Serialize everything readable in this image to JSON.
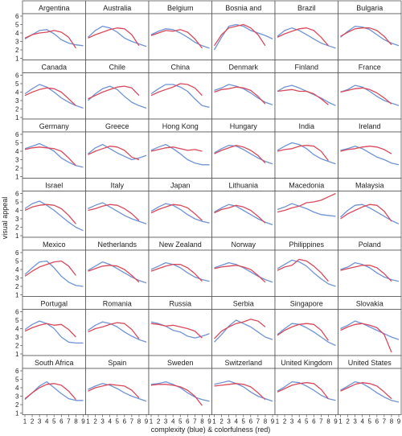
{
  "chart_data": {
    "type": "line",
    "layout": "small-multiples 6x7",
    "ylabel": "visual appeal",
    "xlabel": "complexity (blue) & colorfulness (red)",
    "x": [
      1,
      2,
      3,
      4,
      5,
      6,
      7,
      8,
      9
    ],
    "ylim": [
      1,
      6
    ],
    "yticks": [
      1,
      2,
      3,
      4,
      5,
      6
    ],
    "xlim": [
      1,
      9
    ],
    "series_colors": {
      "complexity": "#6f93d4",
      "colorfulness": "#d9495c"
    },
    "panels": [
      {
        "title": "Argentina",
        "complexity": [
          3.3,
          3.8,
          4.3,
          4.4,
          3.9,
          3.2,
          2.8,
          2.6,
          2.5
        ],
        "colorfulness": [
          3.4,
          3.8,
          4.0,
          4.1,
          4.3,
          4.1,
          3.5,
          2.2,
          null
        ]
      },
      {
        "title": "Australia",
        "complexity": [
          3.5,
          4.3,
          4.8,
          4.6,
          4.1,
          3.4,
          3.0,
          2.7,
          2.4
        ],
        "colorfulness": [
          3.4,
          3.8,
          4.1,
          4.4,
          4.6,
          4.5,
          3.8,
          2.5,
          null
        ]
      },
      {
        "title": "Belgium",
        "complexity": [
          3.8,
          4.2,
          4.5,
          4.4,
          4.0,
          3.5,
          2.9,
          2.5,
          2.2
        ],
        "colorfulness": [
          3.7,
          4.0,
          4.3,
          4.2,
          4.4,
          4.1,
          3.3,
          2.2,
          null
        ]
      },
      {
        "title": "Bosnia and",
        "complexity": [
          2.0,
          3.5,
          4.8,
          5.0,
          4.8,
          4.3,
          4.0,
          3.7,
          3.3
        ],
        "colorfulness": [
          2.5,
          3.8,
          4.6,
          4.8,
          5.0,
          4.6,
          3.8,
          2.5,
          null
        ]
      },
      {
        "title": "Brazil",
        "complexity": [
          3.6,
          4.3,
          4.6,
          4.3,
          3.8,
          3.3,
          2.8,
          2.5,
          2.2
        ],
        "colorfulness": [
          3.5,
          3.9,
          4.2,
          4.5,
          4.6,
          4.3,
          3.5,
          2.5,
          null
        ]
      },
      {
        "title": "Bulgaria",
        "complexity": [
          3.5,
          4.2,
          4.8,
          4.7,
          4.4,
          3.8,
          3.2,
          2.8,
          2.5
        ],
        "colorfulness": [
          3.6,
          4.1,
          4.5,
          4.6,
          4.6,
          4.3,
          3.6,
          2.6,
          null
        ]
      },
      {
        "title": "Canada",
        "complexity": [
          3.8,
          4.4,
          4.9,
          4.6,
          4.0,
          3.3,
          2.8,
          2.4,
          2.1
        ],
        "colorfulness": [
          3.6,
          4.0,
          4.3,
          4.5,
          4.4,
          4.0,
          3.2,
          2.4,
          null
        ]
      },
      {
        "title": "Chile",
        "complexity": [
          3.0,
          3.8,
          4.4,
          4.7,
          4.3,
          3.5,
          2.8,
          2.4,
          2.1
        ],
        "colorfulness": [
          3.2,
          3.6,
          4.0,
          4.3,
          4.6,
          4.7,
          4.5,
          3.6,
          null
        ]
      },
      {
        "title": "China",
        "complexity": [
          3.8,
          4.4,
          4.9,
          4.9,
          4.6,
          4.1,
          3.2,
          2.4,
          2.2
        ],
        "colorfulness": [
          3.6,
          4.0,
          4.3,
          4.6,
          5.0,
          4.9,
          4.5,
          3.6,
          null
        ]
      },
      {
        "title": "Denmark",
        "complexity": [
          4.2,
          4.5,
          4.9,
          4.7,
          4.4,
          3.9,
          3.3,
          2.8,
          2.5
        ],
        "colorfulness": [
          4.0,
          4.3,
          4.4,
          4.6,
          4.5,
          4.2,
          3.5,
          2.6,
          null
        ]
      },
      {
        "title": "Finland",
        "complexity": [
          4.1,
          4.6,
          4.8,
          4.5,
          4.1,
          3.7,
          3.3,
          2.8,
          2.4
        ],
        "colorfulness": [
          4.1,
          4.2,
          4.3,
          4.1,
          4.1,
          3.8,
          3.2,
          2.5,
          null
        ]
      },
      {
        "title": "France",
        "complexity": [
          4.0,
          4.3,
          4.8,
          4.6,
          4.1,
          3.5,
          3.0,
          2.7,
          2.4
        ],
        "colorfulness": [
          4.0,
          4.2,
          4.4,
          4.5,
          4.3,
          3.9,
          3.3,
          2.6,
          null
        ]
      },
      {
        "title": "Germany",
        "complexity": [
          4.3,
          4.6,
          4.9,
          4.5,
          4.0,
          3.2,
          2.7,
          2.3,
          2.1
        ],
        "colorfulness": [
          4.2,
          4.4,
          4.5,
          4.4,
          4.3,
          4.0,
          3.2,
          2.3,
          null
        ]
      },
      {
        "title": "Greece",
        "complexity": [
          3.7,
          4.4,
          4.8,
          4.3,
          3.8,
          3.4,
          3.0,
          3.2,
          3.5
        ],
        "colorfulness": [
          3.6,
          4.0,
          4.3,
          4.6,
          4.5,
          4.1,
          3.3,
          3.0,
          null
        ]
      },
      {
        "title": "Hong Kong",
        "complexity": [
          4.1,
          4.5,
          4.8,
          4.3,
          3.7,
          3.0,
          2.6,
          2.4,
          2.4
        ],
        "colorfulness": [
          4.0,
          4.2,
          4.4,
          4.5,
          4.3,
          4.1,
          4.2,
          4.0,
          null
        ]
      },
      {
        "title": "Hungary",
        "complexity": [
          3.8,
          4.3,
          4.7,
          4.6,
          4.2,
          3.7,
          3.2,
          2.8,
          2.5
        ],
        "colorfulness": [
          3.7,
          4.1,
          4.4,
          4.7,
          4.5,
          4.1,
          3.5,
          2.6,
          null
        ]
      },
      {
        "title": "India",
        "complexity": [
          4.1,
          4.6,
          5.0,
          4.8,
          4.3,
          3.6,
          3.1,
          2.8,
          2.5
        ],
        "colorfulness": [
          4.0,
          4.2,
          4.3,
          4.6,
          4.7,
          4.6,
          4.0,
          2.9,
          null
        ]
      },
      {
        "title": "Ireland",
        "complexity": [
          4.1,
          4.3,
          4.6,
          4.3,
          3.8,
          3.3,
          3.0,
          2.6,
          2.4
        ],
        "colorfulness": [
          4.0,
          4.2,
          4.3,
          4.5,
          4.6,
          4.5,
          4.2,
          3.7,
          null
        ]
      },
      {
        "title": "Israel",
        "complexity": [
          4.2,
          4.8,
          5.1,
          4.6,
          4.0,
          3.3,
          2.6,
          2.0,
          1.6
        ],
        "colorfulness": [
          4.0,
          4.4,
          4.6,
          4.7,
          4.6,
          4.2,
          3.4,
          2.4,
          null
        ]
      },
      {
        "title": "Italy",
        "complexity": [
          4.2,
          4.6,
          4.9,
          4.4,
          3.9,
          3.4,
          3.0,
          2.7,
          2.4
        ],
        "colorfulness": [
          4.0,
          4.2,
          4.5,
          4.7,
          4.6,
          4.2,
          3.6,
          2.8,
          null
        ]
      },
      {
        "title": "Japan",
        "complexity": [
          3.9,
          4.4,
          4.8,
          4.6,
          4.1,
          3.5,
          3.0,
          2.7,
          2.5
        ],
        "colorfulness": [
          3.7,
          4.1,
          4.4,
          4.7,
          4.6,
          4.3,
          3.6,
          2.8,
          null
        ]
      },
      {
        "title": "Lithuania",
        "complexity": [
          3.8,
          4.3,
          4.7,
          4.5,
          4.0,
          3.5,
          3.0,
          2.6,
          2.3
        ],
        "colorfulness": [
          3.7,
          4.1,
          4.3,
          4.6,
          4.4,
          4.0,
          3.3,
          2.5,
          null
        ]
      },
      {
        "title": "Macedonia",
        "complexity": [
          4.1,
          4.4,
          4.8,
          4.5,
          4.2,
          3.8,
          3.5,
          3.4,
          3.3
        ],
        "colorfulness": [
          3.8,
          4.0,
          4.3,
          4.5,
          4.9,
          5.0,
          5.2,
          5.6,
          6.0
        ]
      },
      {
        "title": "Malaysia",
        "complexity": [
          3.2,
          4.0,
          4.6,
          4.7,
          4.3,
          3.8,
          3.3,
          2.8,
          2.4
        ],
        "colorfulness": [
          3.0,
          3.6,
          4.0,
          4.4,
          4.7,
          4.6,
          3.9,
          2.7,
          null
        ]
      },
      {
        "title": "Mexico",
        "complexity": [
          3.4,
          4.2,
          4.9,
          5.0,
          4.2,
          3.2,
          2.5,
          2.1,
          2.0
        ],
        "colorfulness": [
          3.2,
          3.8,
          4.3,
          4.6,
          4.9,
          5.0,
          4.4,
          3.3,
          null
        ]
      },
      {
        "title": "Netherlands",
        "complexity": [
          3.9,
          4.4,
          4.9,
          4.6,
          4.1,
          3.6,
          3.1,
          2.7,
          2.4
        ],
        "colorfulness": [
          3.8,
          4.1,
          4.4,
          4.5,
          4.4,
          4.0,
          3.3,
          2.5,
          null
        ]
      },
      {
        "title": "New Zealand",
        "complexity": [
          4.0,
          4.4,
          4.8,
          4.6,
          4.2,
          3.6,
          3.1,
          2.8,
          2.6
        ],
        "colorfulness": [
          3.8,
          4.1,
          4.4,
          4.6,
          4.6,
          4.2,
          3.5,
          2.6,
          null
        ]
      },
      {
        "title": "Norway",
        "complexity": [
          4.2,
          4.5,
          4.8,
          4.6,
          4.2,
          3.7,
          3.2,
          2.8,
          2.5
        ],
        "colorfulness": [
          4.1,
          4.3,
          4.4,
          4.5,
          4.3,
          4.0,
          3.3,
          2.5,
          null
        ]
      },
      {
        "title": "Philippines",
        "complexity": [
          4.1,
          4.6,
          5.1,
          4.9,
          4.4,
          3.6,
          2.9,
          2.3,
          2.0
        ],
        "colorfulness": [
          3.9,
          4.3,
          4.5,
          5.2,
          5.0,
          4.4,
          3.6,
          2.6,
          null
        ]
      },
      {
        "title": "Poland",
        "complexity": [
          4.0,
          4.3,
          4.8,
          4.6,
          4.2,
          3.6,
          3.1,
          2.8,
          2.6
        ],
        "colorfulness": [
          3.9,
          4.1,
          4.3,
          4.5,
          4.5,
          4.2,
          3.5,
          2.6,
          null
        ]
      },
      {
        "title": "Portugal",
        "complexity": [
          3.9,
          4.5,
          4.9,
          4.6,
          4.0,
          3.0,
          2.4,
          2.3,
          2.3
        ],
        "colorfulness": [
          3.7,
          4.1,
          4.4,
          4.6,
          4.4,
          4.5,
          3.9,
          3.0,
          null
        ]
      },
      {
        "title": "Romania",
        "complexity": [
          3.8,
          4.4,
          4.8,
          4.6,
          4.2,
          3.6,
          3.1,
          2.7,
          2.4
        ],
        "colorfulness": [
          3.6,
          4.0,
          4.2,
          4.5,
          4.7,
          4.6,
          3.9,
          2.8,
          null
        ]
      },
      {
        "title": "Russia",
        "complexity": [
          4.8,
          4.6,
          4.3,
          3.8,
          3.6,
          3.1,
          2.9,
          3.1,
          3.4
        ],
        "colorfulness": [
          4.6,
          4.5,
          4.3,
          4.4,
          4.2,
          4.0,
          3.7,
          2.9,
          null
        ]
      },
      {
        "title": "Serbia",
        "complexity": [
          2.4,
          3.3,
          4.3,
          5.0,
          4.6,
          4.2,
          3.6,
          3.0,
          2.7
        ],
        "colorfulness": [
          2.8,
          3.7,
          4.2,
          4.6,
          4.8,
          5.1,
          4.9,
          4.2,
          null
        ]
      },
      {
        "title": "Singapore",
        "complexity": [
          3.3,
          4.0,
          4.6,
          4.5,
          4.1,
          3.6,
          3.0,
          2.4,
          2.0
        ],
        "colorfulness": [
          3.2,
          3.8,
          4.2,
          4.5,
          4.6,
          4.5,
          3.8,
          2.6,
          null
        ]
      },
      {
        "title": "Slovakia",
        "complexity": [
          4.0,
          4.4,
          4.9,
          4.6,
          4.2,
          3.8,
          3.4,
          3.0,
          2.7
        ],
        "colorfulness": [
          3.8,
          4.2,
          4.5,
          4.6,
          4.4,
          4.1,
          3.3,
          1.2,
          null
        ]
      },
      {
        "title": "South Africa",
        "complexity": [
          2.6,
          3.4,
          4.2,
          4.7,
          4.0,
          3.3,
          2.7,
          2.5,
          2.5
        ],
        "colorfulness": [
          2.7,
          3.4,
          4.0,
          4.4,
          4.5,
          4.3,
          3.6,
          2.6,
          null
        ]
      },
      {
        "title": "Spain",
        "complexity": [
          3.8,
          4.2,
          4.5,
          4.3,
          3.9,
          3.4,
          3.0,
          2.7,
          2.4
        ],
        "colorfulness": [
          3.6,
          4.0,
          4.2,
          4.4,
          4.3,
          4.2,
          3.7,
          2.8,
          null
        ]
      },
      {
        "title": "Sweden",
        "complexity": [
          4.4,
          4.5,
          4.7,
          4.4,
          4.0,
          3.4,
          2.9,
          2.6,
          2.4
        ],
        "colorfulness": [
          4.3,
          4.4,
          4.4,
          4.3,
          4.1,
          3.7,
          3.0,
          1.9,
          null
        ]
      },
      {
        "title": "Switzerland",
        "complexity": [
          4.4,
          4.6,
          4.8,
          4.5,
          4.1,
          3.5,
          3.0,
          2.7,
          2.4
        ],
        "colorfulness": [
          4.2,
          4.3,
          4.4,
          4.5,
          4.4,
          4.1,
          3.4,
          2.6,
          null
        ]
      },
      {
        "title": "United Kingdom",
        "complexity": [
          3.6,
          4.1,
          4.7,
          4.6,
          4.2,
          3.7,
          3.1,
          2.7,
          2.5
        ],
        "colorfulness": [
          3.5,
          3.9,
          4.3,
          4.5,
          4.6,
          4.5,
          3.8,
          2.7,
          null
        ]
      },
      {
        "title": "United States",
        "complexity": [
          3.7,
          4.2,
          4.7,
          4.5,
          4.0,
          3.4,
          2.9,
          2.5,
          2.3
        ],
        "colorfulness": [
          3.6,
          4.0,
          4.4,
          4.6,
          4.5,
          4.2,
          3.5,
          2.7,
          null
        ]
      }
    ]
  }
}
